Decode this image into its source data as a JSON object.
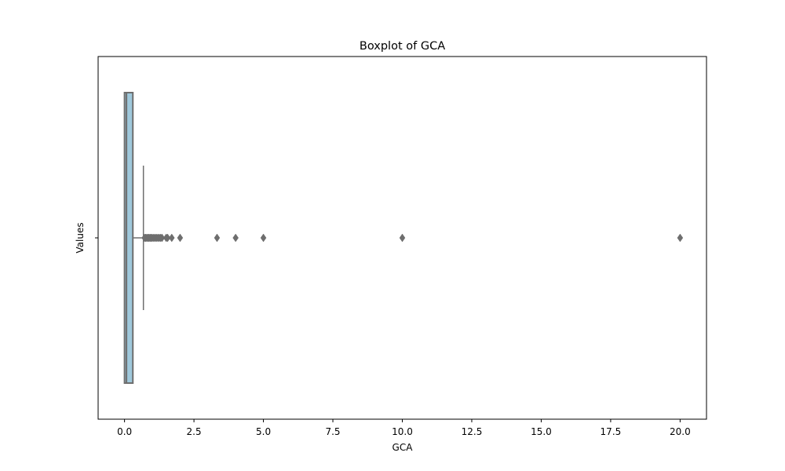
{
  "chart_data": {
    "type": "boxplot",
    "orientation": "horizontal",
    "title": "Boxplot of GCA",
    "xlabel": "GCA",
    "ylabel": "",
    "xlim": [
      -0.95,
      20.95
    ],
    "x_ticks": [
      0,
      2.5,
      5,
      7.5,
      10,
      12.5,
      15,
      17.5,
      20
    ],
    "x_tick_labels": [
      "0.0",
      "2.5",
      "5.0",
      "7.5",
      "10.0",
      "12.5",
      "15.0",
      "17.5",
      "20.0"
    ],
    "y_tick_labels": [
      "Values"
    ],
    "grid": false,
    "series": [
      {
        "name": "Values",
        "q1": 0.0,
        "median": 0.07,
        "q3": 0.3,
        "whisker_low": 0.0,
        "whisker_high": 0.68,
        "outliers": [
          0.72,
          0.76,
          0.8,
          0.84,
          0.88,
          0.92,
          0.96,
          1.0,
          1.05,
          1.1,
          1.15,
          1.2,
          1.25,
          1.3,
          1.35,
          1.5,
          1.55,
          1.7,
          2.0,
          3.33,
          4.0,
          5.0,
          10.0,
          20.0
        ]
      }
    ],
    "colors": {
      "box_fill": "#9fc8db",
      "line": "#6e6e6e",
      "outlier": "#6e6e6e"
    }
  }
}
